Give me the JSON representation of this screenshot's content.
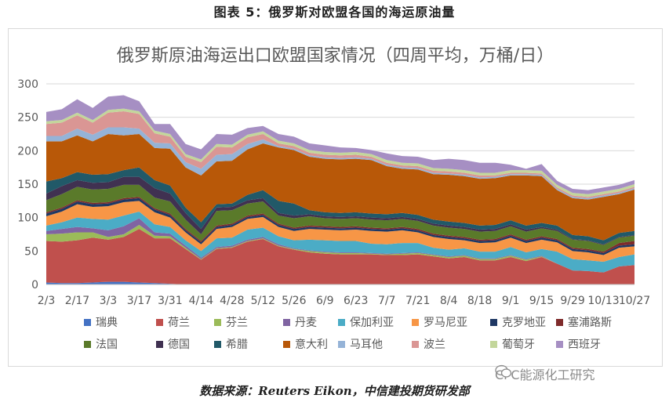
{
  "caption": "图表 5：俄罗斯对欧盟各国的海运原油量",
  "source": "数据来源：Reuters Eikon，中信建投期货研发部",
  "watermark": "CFC能源化工研究",
  "chart_data": {
    "type": "area",
    "stacked": true,
    "title": "俄罗斯原油海运出口欧盟国家情况（四周平均，万桶/日）",
    "xlabel": "",
    "ylabel": "",
    "ylim": [
      0,
      300
    ],
    "yticks": [
      0,
      50,
      100,
      150,
      200,
      250,
      300
    ],
    "grid": true,
    "legend_position": "bottom",
    "x": [
      "2/3",
      "2/10",
      "2/17",
      "2/24",
      "3/3",
      "3/10",
      "3/17",
      "3/24",
      "3/31",
      "4/7",
      "4/14",
      "4/21",
      "4/28",
      "5/5",
      "5/12",
      "5/19",
      "5/26",
      "6/2",
      "6/9",
      "6/16",
      "6/23",
      "6/30",
      "7/7",
      "7/14",
      "7/21",
      "7/28",
      "8/4",
      "8/11",
      "8/18",
      "8/25",
      "9/1",
      "9/8",
      "9/15",
      "9/22",
      "9/29",
      "10/6",
      "10/13",
      "10/20",
      "10/27"
    ],
    "xtick_labels": [
      "2/3",
      "2/17",
      "3/3",
      "3/17",
      "3/31",
      "4/14",
      "4/28",
      "5/12",
      "5/26",
      "6/9",
      "6/23",
      "7/7",
      "7/21",
      "8/4",
      "8/18",
      "9/1",
      "9/15",
      "9/29",
      "10/13",
      "10/27"
    ],
    "series": [
      {
        "name": "瑞典",
        "color": "#4472c4",
        "values": [
          3,
          2,
          2,
          3,
          4,
          4,
          3,
          2,
          1,
          0,
          0,
          0,
          0,
          0,
          0,
          0,
          0,
          0,
          0,
          0,
          0,
          0,
          0,
          0,
          0,
          0,
          0,
          0,
          0,
          0,
          0,
          0,
          0,
          0,
          0,
          0,
          0,
          0,
          0
        ]
      },
      {
        "name": "荷兰",
        "color": "#c0504d",
        "values": [
          62,
          62,
          64,
          67,
          63,
          67,
          80,
          67,
          68,
          53,
          37,
          53,
          55,
          64,
          68,
          57,
          52,
          48,
          46,
          45,
          45,
          45,
          44,
          44,
          45,
          42,
          39,
          41,
          36,
          36,
          41,
          35,
          41,
          31,
          21,
          20,
          18,
          27,
          29
        ]
      },
      {
        "name": "芬兰",
        "color": "#9bbb59",
        "values": [
          10,
          12,
          12,
          8,
          4,
          4,
          6,
          4,
          3,
          2,
          1,
          1,
          1,
          1,
          1,
          1,
          1,
          2,
          2,
          2,
          2,
          1,
          1,
          2,
          2,
          2,
          2,
          2,
          2,
          2,
          2,
          2,
          1,
          0,
          0,
          0,
          0,
          0,
          0
        ]
      },
      {
        "name": "丹麦",
        "color": "#8064a2",
        "values": [
          5,
          7,
          8,
          6,
          10,
          12,
          10,
          5,
          4,
          3,
          2,
          2,
          2,
          2,
          2,
          2,
          1,
          1,
          1,
          1,
          1,
          1,
          1,
          1,
          1,
          1,
          1,
          1,
          1,
          1,
          1,
          1,
          1,
          0,
          0,
          0,
          0,
          0,
          0
        ]
      },
      {
        "name": "保加利亚",
        "color": "#4bacc6",
        "values": [
          8,
          10,
          14,
          14,
          16,
          16,
          10,
          12,
          10,
          8,
          10,
          13,
          12,
          15,
          14,
          12,
          12,
          16,
          17,
          17,
          17,
          14,
          14,
          15,
          14,
          10,
          10,
          10,
          10,
          10,
          12,
          10,
          10,
          18,
          17,
          16,
          16,
          14,
          16
        ]
      },
      {
        "name": "罗马尼亚",
        "color": "#f79646",
        "values": [
          14,
          16,
          20,
          18,
          20,
          20,
          16,
          18,
          14,
          12,
          10,
          14,
          16,
          16,
          16,
          14,
          14,
          16,
          16,
          16,
          17,
          19,
          19,
          19,
          16,
          16,
          16,
          12,
          13,
          14,
          14,
          14,
          14,
          14,
          12,
          12,
          10,
          14,
          12
        ]
      },
      {
        "name": "克罗地亚",
        "color": "#1f3864",
        "values": [
          4,
          4,
          4,
          4,
          4,
          4,
          4,
          4,
          4,
          3,
          3,
          3,
          3,
          3,
          3,
          3,
          3,
          3,
          3,
          3,
          3,
          3,
          3,
          3,
          3,
          3,
          3,
          3,
          3,
          3,
          3,
          3,
          3,
          3,
          3,
          3,
          3,
          3,
          3
        ]
      },
      {
        "name": "塞浦路斯",
        "color": "#7f2b2b",
        "values": [
          2,
          2,
          2,
          2,
          2,
          2,
          2,
          2,
          2,
          2,
          2,
          2,
          2,
          2,
          2,
          2,
          2,
          2,
          2,
          2,
          2,
          2,
          2,
          2,
          2,
          2,
          2,
          2,
          2,
          2,
          2,
          2,
          2,
          2,
          2,
          2,
          2,
          4,
          5
        ]
      },
      {
        "name": "法国",
        "color": "#5a7a2a",
        "values": [
          18,
          20,
          20,
          20,
          20,
          20,
          18,
          16,
          18,
          14,
          10,
          22,
          20,
          18,
          18,
          12,
          14,
          14,
          12,
          12,
          12,
          12,
          12,
          12,
          12,
          12,
          12,
          12,
          12,
          12,
          12,
          12,
          12,
          12,
          12,
          12,
          10,
          8,
          8
        ]
      },
      {
        "name": "德国",
        "color": "#403151",
        "values": [
          10,
          12,
          10,
          10,
          10,
          12,
          12,
          14,
          12,
          10,
          8,
          5,
          5,
          5,
          5,
          4,
          4,
          3,
          3,
          3,
          3,
          3,
          3,
          3,
          3,
          3,
          3,
          3,
          3,
          3,
          3,
          3,
          2,
          2,
          1,
          1,
          1,
          1,
          1
        ]
      },
      {
        "name": "希腊",
        "color": "#215968",
        "values": [
          18,
          12,
          12,
          12,
          12,
          10,
          14,
          12,
          12,
          8,
          10,
          5,
          5,
          8,
          12,
          18,
          18,
          6,
          6,
          6,
          6,
          6,
          6,
          6,
          6,
          6,
          6,
          6,
          6,
          6,
          6,
          6,
          6,
          6,
          6,
          6,
          6,
          6,
          6
        ]
      },
      {
        "name": "意大利",
        "color": "#b85808",
        "values": [
          60,
          55,
          55,
          50,
          60,
          52,
          50,
          48,
          55,
          60,
          70,
          64,
          64,
          68,
          70,
          80,
          80,
          80,
          80,
          80,
          80,
          80,
          72,
          66,
          68,
          68,
          70,
          70,
          70,
          70,
          67,
          75,
          70,
          53,
          55,
          55,
          65,
          58,
          62
        ]
      },
      {
        "name": "马耳他",
        "color": "#95b3d7",
        "values": [
          8,
          8,
          10,
          10,
          10,
          12,
          8,
          8,
          8,
          8,
          10,
          10,
          10,
          8,
          6,
          2,
          2,
          2,
          2,
          2,
          2,
          2,
          2,
          2,
          2,
          2,
          2,
          2,
          2,
          2,
          2,
          2,
          2,
          2,
          2,
          2,
          2,
          2,
          2
        ]
      },
      {
        "name": "波兰",
        "color": "#da9694",
        "values": [
          18,
          20,
          20,
          18,
          22,
          24,
          22,
          14,
          10,
          8,
          10,
          12,
          10,
          10,
          8,
          4,
          4,
          4,
          4,
          4,
          4,
          3,
          3,
          3,
          3,
          3,
          3,
          3,
          3,
          2,
          2,
          2,
          2,
          2,
          2,
          2,
          2,
          2,
          2
        ]
      },
      {
        "name": "葡萄牙",
        "color": "#c3d69b",
        "values": [
          4,
          4,
          4,
          4,
          4,
          4,
          4,
          4,
          4,
          4,
          4,
          4,
          4,
          4,
          4,
          4,
          4,
          4,
          4,
          4,
          4,
          4,
          4,
          4,
          4,
          4,
          4,
          4,
          4,
          4,
          4,
          4,
          4,
          4,
          4,
          4,
          4,
          4,
          4
        ]
      },
      {
        "name": "西班牙",
        "color": "#a68fc3",
        "values": [
          14,
          16,
          20,
          18,
          20,
          20,
          15,
          10,
          15,
          15,
          15,
          15,
          15,
          10,
          8,
          10,
          10,
          10,
          10,
          8,
          6,
          6,
          10,
          10,
          10,
          12,
          15,
          15,
          15,
          15,
          8,
          2,
          10,
          6,
          6,
          6,
          6,
          6,
          6
        ]
      }
    ]
  }
}
